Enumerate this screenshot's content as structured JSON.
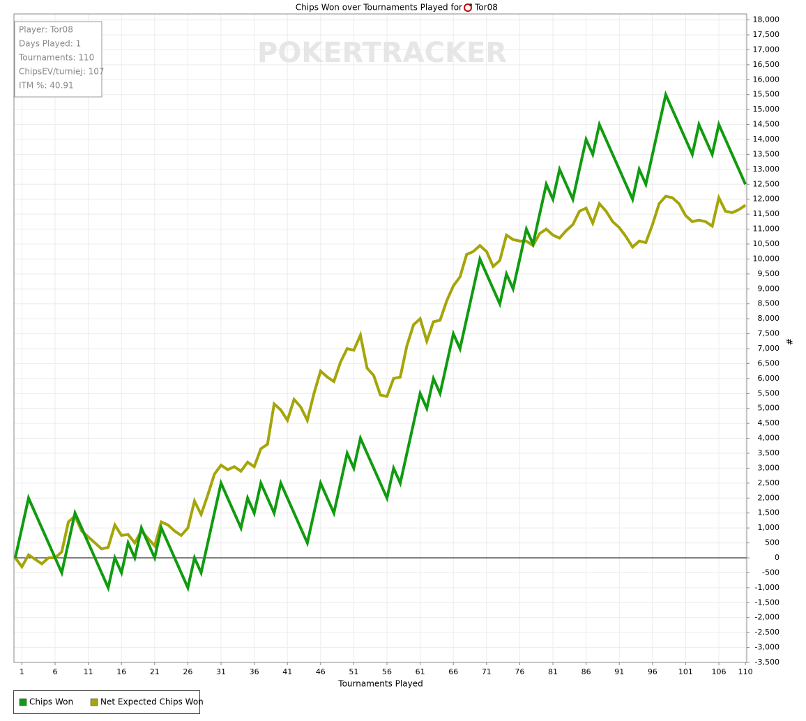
{
  "chart_data": {
    "type": "line",
    "title": "Chips Won over Tournaments Played for",
    "title_player": "Tor08",
    "watermark": "POKERTRACKER",
    "info": [
      "Player: Tor08",
      "Days Played: 1",
      "Tournaments: 110",
      "ChipsEV/turniej: 107",
      "ITM %: 40.91"
    ],
    "xlabel": "Tournaments Played",
    "ylabel": "#",
    "xlim": [
      -0.2,
      110.2
    ],
    "ylim": [
      -3500,
      18200
    ],
    "xticks": [
      1,
      6,
      11,
      16,
      21,
      26,
      31,
      36,
      41,
      46,
      51,
      56,
      61,
      66,
      71,
      76,
      81,
      86,
      91,
      96,
      101,
      106,
      110
    ],
    "yticks": [
      {
        "value": -3500,
        "label": "-3,500"
      },
      {
        "value": -3000,
        "label": "-3,000"
      },
      {
        "value": -2500,
        "label": "-2,500"
      },
      {
        "value": -2000,
        "label": "-2,000"
      },
      {
        "value": -1500,
        "label": "-1,500"
      },
      {
        "value": -1000,
        "label": "-1,000"
      },
      -500,
      0,
      500,
      {
        "value": 1000,
        "label": "1,000"
      },
      {
        "value": 1500,
        "label": "1,500"
      },
      {
        "value": 2000,
        "label": "2,000"
      },
      {
        "value": 2500,
        "label": "2,500"
      },
      {
        "value": 3000,
        "label": "3,000"
      },
      {
        "value": 3500,
        "label": "3,500"
      },
      {
        "value": 4000,
        "label": "4,000"
      },
      {
        "value": 4500,
        "label": "4,500"
      },
      {
        "value": 5000,
        "label": "5,000"
      },
      {
        "value": 5500,
        "label": "5,500"
      },
      {
        "value": 6000,
        "label": "6,000"
      },
      {
        "value": 6500,
        "label": "6,500"
      },
      {
        "value": 7000,
        "label": "7,000"
      },
      {
        "value": 7500,
        "label": "7,500"
      },
      {
        "value": 8000,
        "label": "8,000"
      },
      {
        "value": 8500,
        "label": "8,500"
      },
      {
        "value": 9000,
        "label": "9,000"
      },
      {
        "value": 9500,
        "label": "9,500"
      },
      {
        "value": 10000,
        "label": "10,000"
      },
      {
        "value": 10500,
        "label": "10,500"
      },
      {
        "value": 11000,
        "label": "11,000"
      },
      {
        "value": 11500,
        "label": "11,500"
      },
      {
        "value": 12000,
        "label": "12,000"
      },
      {
        "value": 12500,
        "label": "12,500"
      },
      {
        "value": 13000,
        "label": "13,000"
      },
      {
        "value": 13500,
        "label": "13,500"
      },
      {
        "value": 14000,
        "label": "14,000"
      },
      {
        "value": 14500,
        "label": "14,500"
      },
      {
        "value": 15000,
        "label": "15,000"
      },
      {
        "value": 15500,
        "label": "15,500"
      },
      {
        "value": 16000,
        "label": "16,000"
      },
      {
        "value": 16500,
        "label": "16,500"
      },
      {
        "value": 17000,
        "label": "17,000"
      },
      {
        "value": 17500,
        "label": "17,500"
      },
      {
        "value": 18000,
        "label": "18,000"
      }
    ],
    "grid": true,
    "x": [
      0,
      1,
      2,
      3,
      4,
      5,
      6,
      7,
      8,
      9,
      10,
      11,
      12,
      13,
      14,
      15,
      16,
      17,
      18,
      19,
      20,
      21,
      22,
      23,
      24,
      25,
      26,
      27,
      28,
      29,
      30,
      31,
      32,
      33,
      34,
      35,
      36,
      37,
      38,
      39,
      40,
      41,
      42,
      43,
      44,
      45,
      46,
      47,
      48,
      49,
      50,
      51,
      52,
      53,
      54,
      55,
      56,
      57,
      58,
      59,
      60,
      61,
      62,
      63,
      64,
      65,
      66,
      67,
      68,
      69,
      70,
      71,
      72,
      73,
      74,
      75,
      76,
      77,
      78,
      79,
      80,
      81,
      82,
      83,
      84,
      85,
      86,
      87,
      88,
      89,
      90,
      91,
      92,
      93,
      94,
      95,
      96,
      97,
      98,
      99,
      100,
      101,
      102,
      103,
      104,
      105,
      106,
      107,
      108,
      109,
      110
    ],
    "series": [
      {
        "name": "Chips Won",
        "color": "#109b10",
        "values": [
          0,
          1000,
          2000,
          1500,
          1000,
          500,
          0,
          -500,
          500,
          1500,
          1000,
          500,
          0,
          -500,
          -1000,
          0,
          -500,
          500,
          0,
          1000,
          500,
          0,
          1000,
          500,
          0,
          -500,
          -1000,
          0,
          -500,
          500,
          1500,
          2500,
          2000,
          1500,
          1000,
          2000,
          1500,
          2500,
          2000,
          1500,
          2500,
          2000,
          1500,
          1000,
          500,
          1500,
          2500,
          2000,
          1500,
          2500,
          3500,
          3000,
          4000,
          3500,
          3000,
          2500,
          2000,
          3000,
          2500,
          3500,
          4500,
          5500,
          5000,
          6000,
          5500,
          6500,
          7500,
          7000,
          8000,
          9000,
          10000,
          9500,
          9000,
          8500,
          9500,
          9000,
          10000,
          11000,
          10500,
          11500,
          12500,
          12000,
          13000,
          12500,
          12000,
          13000,
          14000,
          13500,
          14500,
          14000,
          13500,
          13000,
          12500,
          12000,
          13000,
          12500,
          13500,
          14500,
          15500,
          15000,
          14500,
          14000,
          13500,
          14500,
          14000,
          13500,
          14500,
          14000,
          13500,
          13000,
          12500
        ]
      },
      {
        "name": "Net Expected Chips Won",
        "color": "#a5a50a",
        "values": [
          0,
          -300,
          100,
          -50,
          -200,
          0,
          0,
          200,
          1200,
          1400,
          900,
          700,
          500,
          300,
          350,
          1100,
          750,
          780,
          500,
          900,
          650,
          400,
          1200,
          1100,
          900,
          750,
          1000,
          1900,
          1450,
          2100,
          2800,
          3100,
          2950,
          3050,
          2900,
          3200,
          3050,
          3650,
          3800,
          5150,
          4950,
          4600,
          5300,
          5050,
          4600,
          5500,
          6250,
          6050,
          5900,
          6550,
          7000,
          6950,
          7450,
          6350,
          6100,
          5450,
          5400,
          6000,
          6050,
          7100,
          7800,
          8000,
          7250,
          7900,
          7950,
          8600,
          9100,
          9400,
          10150,
          10250,
          10450,
          10250,
          9750,
          9950,
          10800,
          10650,
          10600,
          10600,
          10450,
          10850,
          11000,
          10800,
          10700,
          10950,
          11150,
          11600,
          11700,
          11200,
          11850,
          11600,
          11250,
          11050,
          10750,
          10400,
          10600,
          10550,
          11150,
          11850,
          12100,
          12050,
          11850,
          11450,
          11250,
          11300,
          11250,
          11100,
          12050,
          11600,
          11550,
          11650,
          11800
        ]
      }
    ]
  }
}
